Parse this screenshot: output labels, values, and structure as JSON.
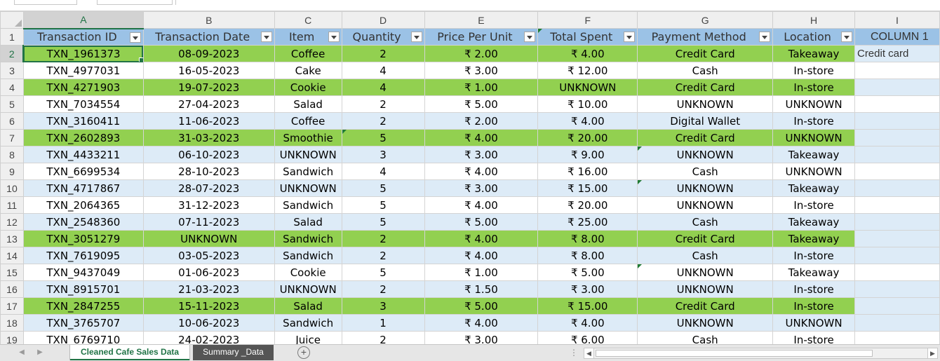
{
  "column_letters": [
    "A",
    "B",
    "C",
    "D",
    "E",
    "F",
    "G",
    "H",
    "I"
  ],
  "headers": [
    "Transaction ID",
    "Transaction Date",
    "Item",
    "Quantity",
    "Price Per Unit",
    "Total Spent",
    "Payment Method",
    "Location",
    "COLUMN 1"
  ],
  "row_numbers": [
    "1",
    "2",
    "3",
    "4",
    "5",
    "6",
    "7",
    "8",
    "9",
    "10",
    "11",
    "12",
    "13",
    "14",
    "15",
    "16",
    "17",
    "18",
    "19"
  ],
  "rows": [
    {
      "style": "g",
      "cells": [
        "TXN_1961373",
        "08-09-2023",
        "Coffee",
        "2",
        "₹ 2.00",
        "₹ 4.00",
        "Credit Card",
        "Takeaway"
      ],
      "extra": "Credit card"
    },
    {
      "style": "w",
      "cells": [
        "TXN_4977031",
        "16-05-2023",
        "Cake",
        "4",
        "₹ 3.00",
        "₹ 12.00",
        "Cash",
        "In-store"
      ],
      "extra": ""
    },
    {
      "style": "g",
      "cells": [
        "TXN_4271903",
        "19-07-2023",
        "Cookie",
        "4",
        "₹ 1.00",
        "UNKNOWN",
        "Credit Card",
        "In-store"
      ],
      "extra": ""
    },
    {
      "style": "w",
      "cells": [
        "TXN_7034554",
        "27-04-2023",
        "Salad",
        "2",
        "₹ 5.00",
        "₹ 10.00",
        "UNKNOWN",
        "UNKNOWN"
      ],
      "extra": ""
    },
    {
      "style": "b",
      "cells": [
        "TXN_3160411",
        "11-06-2023",
        "Coffee",
        "2",
        "₹ 2.00",
        "₹ 4.00",
        "Digital Wallet",
        "In-store"
      ],
      "extra": ""
    },
    {
      "style": "g",
      "cells": [
        "TXN_2602893",
        "31-03-2023",
        "Smoothie",
        "5",
        "₹ 4.00",
        "₹ 20.00",
        "Credit Card",
        "UNKNOWN"
      ],
      "extra": ""
    },
    {
      "style": "b",
      "cells": [
        "TXN_4433211",
        "06-10-2023",
        "UNKNOWN",
        "3",
        "₹ 3.00",
        "₹ 9.00",
        "UNKNOWN",
        "Takeaway"
      ],
      "extra": ""
    },
    {
      "style": "w",
      "cells": [
        "TXN_6699534",
        "28-10-2023",
        "Sandwich",
        "4",
        "₹ 4.00",
        "₹ 16.00",
        "Cash",
        "UNKNOWN"
      ],
      "extra": ""
    },
    {
      "style": "b",
      "cells": [
        "TXN_4717867",
        "28-07-2023",
        "UNKNOWN",
        "5",
        "₹ 3.00",
        "₹ 15.00",
        "UNKNOWN",
        "Takeaway"
      ],
      "extra": ""
    },
    {
      "style": "w",
      "cells": [
        "TXN_2064365",
        "31-12-2023",
        "Sandwich",
        "5",
        "₹ 4.00",
        "₹ 20.00",
        "UNKNOWN",
        "In-store"
      ],
      "extra": ""
    },
    {
      "style": "b",
      "cells": [
        "TXN_2548360",
        "07-11-2023",
        "Salad",
        "5",
        "₹ 5.00",
        "₹ 25.00",
        "Cash",
        "Takeaway"
      ],
      "extra": ""
    },
    {
      "style": "g",
      "cells": [
        "TXN_3051279",
        "UNKNOWN",
        "Sandwich",
        "2",
        "₹ 4.00",
        "₹ 8.00",
        "Credit Card",
        "Takeaway"
      ],
      "extra": ""
    },
    {
      "style": "b",
      "cells": [
        "TXN_7619095",
        "03-05-2023",
        "Sandwich",
        "2",
        "₹ 4.00",
        "₹ 8.00",
        "Cash",
        "In-store"
      ],
      "extra": ""
    },
    {
      "style": "w",
      "cells": [
        "TXN_9437049",
        "01-06-2023",
        "Cookie",
        "5",
        "₹ 1.00",
        "₹ 5.00",
        "UNKNOWN",
        "Takeaway"
      ],
      "extra": ""
    },
    {
      "style": "b",
      "cells": [
        "TXN_8915701",
        "21-03-2023",
        "UNKNOWN",
        "2",
        "₹ 1.50",
        "₹ 3.00",
        "UNKNOWN",
        "In-store"
      ],
      "extra": ""
    },
    {
      "style": "g",
      "cells": [
        "TXN_2847255",
        "15-11-2023",
        "Salad",
        "3",
        "₹ 5.00",
        "₹ 15.00",
        "Credit Card",
        "In-store"
      ],
      "extra": ""
    },
    {
      "style": "b",
      "cells": [
        "TXN_3765707",
        "10-06-2023",
        "Sandwich",
        "1",
        "₹ 4.00",
        "₹ 4.00",
        "UNKNOWN",
        "UNKNOWN"
      ],
      "extra": ""
    },
    {
      "style": "w",
      "cells": [
        "TXN_6769710",
        "24-02-2023",
        "Juice",
        "2",
        "₹ 3.00",
        "₹ 6.00",
        "Cash",
        "In-store"
      ],
      "extra": ""
    }
  ],
  "sheet_tabs": [
    {
      "label": "Cleaned Cafe Sales Data",
      "active": true
    },
    {
      "label": "Summary _Data",
      "active": false
    }
  ],
  "colors": {
    "green_fill": "#92d050",
    "blue_fill": "#ddebf7",
    "header_fill": "#9bc2e6",
    "excel_accent": "#217346"
  }
}
